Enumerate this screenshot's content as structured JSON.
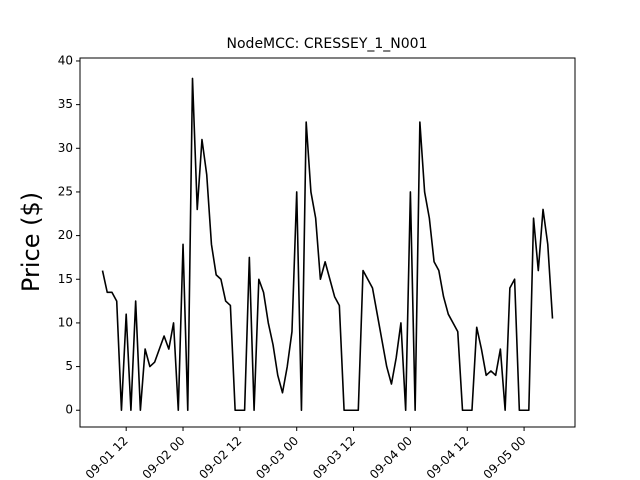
{
  "chart_data": {
    "type": "line",
    "title": "NodeMCC: CRESSEY_1_N001",
    "y_label": "Price ($)",
    "x": [
      "09-01 07",
      "09-01 08",
      "09-01 09",
      "09-01 10",
      "09-01 11",
      "09-01 12",
      "09-01 13",
      "09-01 14",
      "09-01 15",
      "09-01 16",
      "09-01 17",
      "09-01 18",
      "09-01 19",
      "09-01 20",
      "09-01 21",
      "09-01 22",
      "09-01 23",
      "09-02 00",
      "09-02 01",
      "09-02 02",
      "09-02 03",
      "09-02 04",
      "09-02 05",
      "09-02 06",
      "09-02 07",
      "09-02 08",
      "09-02 09",
      "09-02 10",
      "09-02 11",
      "09-02 12",
      "09-02 13",
      "09-02 14",
      "09-02 15",
      "09-02 16",
      "09-02 17",
      "09-02 18",
      "09-02 19",
      "09-02 20",
      "09-02 21",
      "09-02 22",
      "09-02 23",
      "09-03 00",
      "09-03 01",
      "09-03 02",
      "09-03 03",
      "09-03 04",
      "09-03 05",
      "09-03 06",
      "09-03 07",
      "09-03 08",
      "09-03 09",
      "09-03 10",
      "09-03 11",
      "09-03 12",
      "09-03 13",
      "09-03 14",
      "09-03 15",
      "09-03 16",
      "09-03 17",
      "09-03 18",
      "09-03 19",
      "09-03 20",
      "09-03 21",
      "09-03 22",
      "09-03 23",
      "09-04 00",
      "09-04 01",
      "09-04 02",
      "09-04 03",
      "09-04 04",
      "09-04 05",
      "09-04 06",
      "09-04 07",
      "09-04 08",
      "09-04 09",
      "09-04 10",
      "09-04 11",
      "09-04 12",
      "09-04 13",
      "09-04 14",
      "09-04 15",
      "09-04 16",
      "09-04 17",
      "09-04 18",
      "09-04 19",
      "09-04 20",
      "09-04 21",
      "09-04 22",
      "09-04 23",
      "09-05 00",
      "09-05 01",
      "09-05 02",
      "09-05 03",
      "09-05 04",
      "09-05 05",
      "09-05 06"
    ],
    "series": [
      {
        "name": "CRESSEY_1_N001",
        "color": "#000000",
        "values": [
          16,
          13.5,
          13.5,
          12.5,
          0,
          11,
          0,
          12.5,
          0,
          7,
          5,
          5.5,
          7,
          8.5,
          7,
          10,
          0,
          19,
          0,
          38,
          23,
          31,
          27,
          19,
          15.5,
          15,
          12.5,
          12,
          0,
          0,
          0,
          17.5,
          0,
          15,
          13.5,
          10,
          7.5,
          4,
          2,
          5,
          9,
          25,
          0,
          33,
          25,
          22,
          15,
          17,
          15,
          13,
          12,
          0,
          0,
          0,
          0,
          16,
          15,
          14,
          11,
          8,
          5,
          3,
          6,
          10,
          0,
          25,
          0,
          33,
          25,
          22,
          17,
          16,
          13,
          11,
          10,
          9,
          0,
          0,
          0,
          9.5,
          7,
          4,
          4.5,
          4,
          7,
          0,
          14,
          15,
          0,
          0,
          0,
          22,
          16,
          23,
          19,
          10.5
        ]
      }
    ],
    "xlim": [
      "09-01 02:15",
      "09-05 10:45"
    ],
    "xticks": [
      "09-01 12",
      "09-02 00",
      "09-02 12",
      "09-03 00",
      "09-03 12",
      "09-04 00",
      "09-04 12",
      "09-05 00"
    ],
    "ylim": [
      -1.92,
      40.34
    ],
    "yticks": [
      0,
      5,
      10,
      15,
      20,
      25,
      30,
      35,
      40
    ]
  }
}
